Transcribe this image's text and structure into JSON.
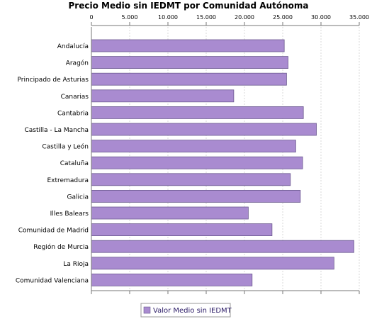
{
  "chart_data": {
    "type": "bar",
    "orientation": "horizontal",
    "title": "Precio Medio sin IEDMT por Comunidad Autónoma",
    "xlabel": "",
    "ylabel": "",
    "xlim": [
      0,
      35000
    ],
    "x_ticks": [
      0,
      5000,
      10000,
      15000,
      20000,
      25000,
      30000,
      35000
    ],
    "x_tick_labels": [
      "0",
      "5.000",
      "10.000",
      "15.000",
      "20.000",
      "25.000",
      "30.000",
      "35.000"
    ],
    "grid": true,
    "legend_position": "bottom",
    "categories": [
      "Andalucía",
      "Aragón",
      "Principado de Asturias",
      "Canarias",
      "Cantabria",
      "Castilla - La Mancha",
      "Castilla y León",
      "Cataluña",
      "Extremadura",
      "Galicia",
      "Illes Balears",
      "Comunidad de Madrid",
      "Región de Murcia",
      "La Rioja",
      "Comunidad Valenciana"
    ],
    "series": [
      {
        "name": "Valor Medio sin IEDMT",
        "color": "#a98bd0",
        "values": [
          25200,
          25700,
          25500,
          18600,
          27700,
          29400,
          26700,
          27600,
          26000,
          27300,
          20500,
          23600,
          34300,
          31700,
          21000
        ]
      }
    ]
  }
}
